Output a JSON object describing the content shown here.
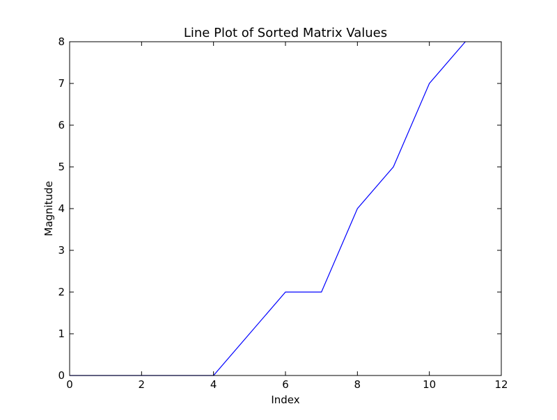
{
  "chart_data": {
    "type": "line",
    "title": "Line Plot of Sorted Matrix Values",
    "xlabel": "Index",
    "ylabel": "Magnitude",
    "xlim": [
      0,
      12
    ],
    "ylim": [
      0,
      8
    ],
    "xticks": [
      0,
      2,
      4,
      6,
      8,
      10,
      12
    ],
    "yticks": [
      0,
      1,
      2,
      3,
      4,
      5,
      6,
      7,
      8
    ],
    "grid": false,
    "series": [
      {
        "color": "#0000ff",
        "x": [
          0,
          1,
          2,
          3,
          4,
          5,
          6,
          7,
          8,
          9,
          10,
          11
        ],
        "y": [
          0,
          0,
          0,
          0,
          0,
          1,
          2,
          2,
          4,
          5,
          7,
          8
        ]
      }
    ]
  }
}
